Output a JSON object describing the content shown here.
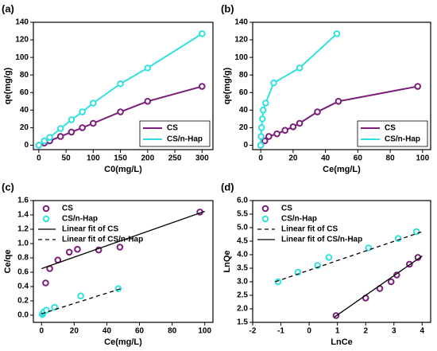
{
  "chart_data": [
    {
      "type": "line",
      "title": "(a)",
      "x_label": "C0(mg/L)",
      "y_label": "qe(mg/g)",
      "xlim": [
        -10,
        320
      ],
      "xticks": [
        0,
        50,
        100,
        150,
        200,
        250,
        300
      ],
      "ylim": [
        -5,
        140
      ],
      "yticks": [
        0,
        20,
        40,
        60,
        80,
        100,
        120,
        140
      ],
      "legend": "lower right",
      "series": [
        {
          "name": "CS",
          "color": "#7b1e7a",
          "x": [
            0,
            10,
            20,
            40,
            60,
            80,
            100,
            150,
            200,
            300
          ],
          "values": [
            0,
            2.5,
            5,
            10,
            15,
            20,
            25,
            38,
            50,
            67
          ]
        },
        {
          "name": "CS/n-Hap",
          "color": "#33e0e0",
          "x": [
            0,
            10,
            20,
            40,
            60,
            80,
            100,
            150,
            200,
            300
          ],
          "values": [
            0,
            5,
            9,
            19,
            29,
            38,
            48,
            70,
            88,
            127
          ]
        }
      ]
    },
    {
      "type": "line",
      "title": "(b)",
      "x_label": "Ce(mg/L)",
      "y_label": "qe(mg/g)",
      "xlim": [
        -5,
        105
      ],
      "xticks": [
        0,
        20,
        40,
        60,
        80,
        100
      ],
      "ylim": [
        -5,
        140
      ],
      "yticks": [
        0,
        20,
        40,
        60,
        80,
        100,
        120,
        140
      ],
      "legend": "lower right",
      "series": [
        {
          "name": "CS",
          "color": "#7b1e7a",
          "x": [
            0,
            2.5,
            5,
            10,
            15,
            20,
            24,
            35,
            48,
            97
          ],
          "values": [
            0,
            5,
            10,
            13,
            17,
            21,
            25,
            38,
            50,
            67
          ]
        },
        {
          "name": "CS/n-Hap",
          "color": "#33e0e0",
          "x": [
            0,
            0.2,
            0.5,
            1,
            1.5,
            3,
            8,
            24,
            47
          ],
          "values": [
            0,
            10,
            20,
            30,
            40,
            48,
            71,
            88,
            127
          ]
        }
      ]
    },
    {
      "type": "scatter",
      "title": "(c)",
      "x_label": "Ce(mg/L)",
      "y_label": "Ce/qe",
      "xlim": [
        -5,
        105
      ],
      "xticks": [
        0,
        20,
        40,
        60,
        80,
        100
      ],
      "ylim": [
        -0.1,
        1.6
      ],
      "yticks": [
        {
          "value": 0,
          "label": "0.0"
        },
        0.2,
        0.4,
        0.6,
        0.8,
        {
          "value": 1,
          "label": "1.0"
        },
        1.2,
        1.4,
        1.6
      ],
      "legend": "upper left",
      "series": [
        {
          "name": "CS",
          "color": "#7b1e7a",
          "marker": true,
          "x": [
            2.5,
            5,
            10,
            17,
            22,
            35,
            48,
            97
          ],
          "values": [
            0.45,
            0.65,
            0.77,
            0.88,
            0.92,
            0.91,
            0.95,
            1.44
          ]
        },
        {
          "name": "CS/n-Hap",
          "color": "#33e0e0",
          "marker": true,
          "x": [
            0.5,
            1,
            1.5,
            3,
            8,
            24,
            47
          ],
          "values": [
            0.01,
            0.03,
            0.05,
            0.07,
            0.11,
            0.27,
            0.37
          ]
        },
        {
          "name": "Linear fit of CS",
          "color": "#000000",
          "marker": false,
          "dash": false,
          "x": [
            0,
            100
          ],
          "values": [
            0.65,
            1.45
          ]
        },
        {
          "name": "Linear fit of CS/n-Hap",
          "color": "#000000",
          "marker": false,
          "dash": true,
          "x": [
            0,
            50
          ],
          "values": [
            0.02,
            0.38
          ]
        }
      ]
    },
    {
      "type": "scatter",
      "title": "(d)",
      "x_label": "LnCe",
      "y_label": "LnQe",
      "xlim": [
        -2,
        4.3
      ],
      "xticks": [
        -2,
        -1,
        0,
        1,
        2,
        3,
        4
      ],
      "ylim": [
        1.5,
        6
      ],
      "yticks": [
        1.5,
        {
          "value": 2,
          "label": "2.0"
        },
        2.5,
        {
          "value": 3,
          "label": "3.0"
        },
        3.5,
        {
          "value": 4,
          "label": "4.0"
        },
        4.5,
        {
          "value": 5,
          "label": "5.0"
        },
        5.5,
        {
          "value": 6,
          "label": "6.0"
        }
      ],
      "legend": "upper left",
      "series": [
        {
          "name": "CS",
          "color": "#7b1e7a",
          "marker": true,
          "x": [
            0.95,
            2.0,
            2.5,
            2.9,
            3.1,
            3.55,
            3.85
          ],
          "values": [
            1.75,
            2.4,
            2.75,
            3.0,
            3.25,
            3.65,
            3.9
          ]
        },
        {
          "name": "CS/n-Hap",
          "color": "#33e0e0",
          "marker": true,
          "x": [
            -1.1,
            -0.4,
            0.3,
            0.7,
            2.1,
            3.15,
            3.8
          ],
          "values": [
            3.0,
            3.35,
            3.6,
            3.9,
            4.25,
            4.6,
            4.85
          ]
        },
        {
          "name": "Linear fit of CS",
          "color": "#000000",
          "marker": false,
          "dash": true,
          "x": [
            -1.2,
            4.0
          ],
          "values": [
            3.0,
            4.85
          ]
        },
        {
          "name": "Linear fit of CS/n-Hap",
          "color": "#000000",
          "marker": false,
          "dash": false,
          "x": [
            0.9,
            4.0
          ],
          "values": [
            1.7,
            3.95
          ]
        }
      ]
    }
  ]
}
